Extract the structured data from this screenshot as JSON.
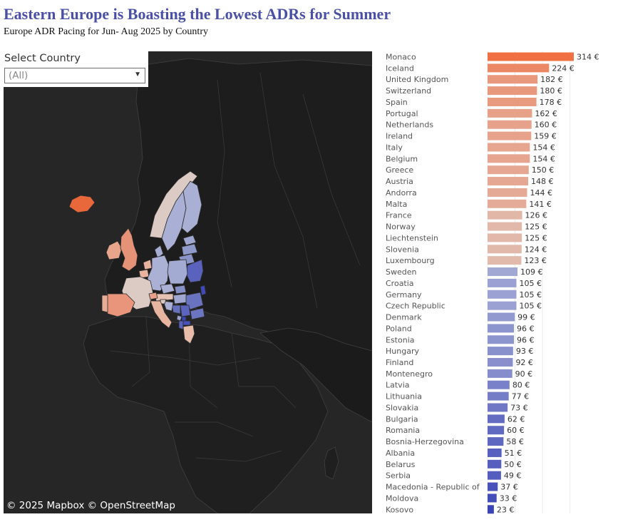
{
  "title": "Eastern Europe is Boasting the Lowest ADRs for Summer",
  "subtitle": "Europe ADR Pacing for Jun- Aug 2025 by Country",
  "filter": {
    "label": "Select Country",
    "value": "(All)",
    "caret_icon": "chevron-down-icon"
  },
  "map": {
    "attribution": "© 2025 Mapbox  © OpenStreetMap",
    "background_color": "#262626",
    "land_color": "#1c1c1c",
    "border_color": "#4a4a4a"
  },
  "colors": {
    "high": "#f07044",
    "mid_high": "#e8b8a4",
    "neutral": "#dccbc4",
    "mid_low": "#a9b0d4",
    "low": "#3d48b8"
  },
  "chart_data": {
    "type": "bar",
    "orientation": "horizontal",
    "value_prefix": "",
    "value_suffix": " €",
    "xlim": [
      0,
      330
    ],
    "color_midpoint": 116,
    "categories": [
      "Monaco",
      "Iceland",
      "United Kingdom",
      "Switzerland",
      "Spain",
      "Portugal",
      "Netherlands",
      "Ireland",
      "Italy",
      "Belgium",
      "Greece",
      "Austria",
      "Andorra",
      "Malta",
      "France",
      "Norway",
      "Liechtenstein",
      "Slovenia",
      "Luxembourg",
      "Sweden",
      "Croatia",
      "Germany",
      "Czech Republic",
      "Denmark",
      "Poland",
      "Estonia",
      "Hungary",
      "Finland",
      "Montenegro",
      "Latvia",
      "Lithuania",
      "Slovakia",
      "Bulgaria",
      "Romania",
      "Bosnia-Herzegovina",
      "Albania",
      "Belarus",
      "Serbia",
      "Macedonia - Republic of",
      "Moldova",
      "Kosovo"
    ],
    "values": [
      314,
      224,
      182,
      180,
      178,
      162,
      160,
      159,
      154,
      154,
      150,
      148,
      144,
      141,
      126,
      125,
      125,
      124,
      123,
      109,
      105,
      105,
      105,
      99,
      96,
      96,
      93,
      92,
      90,
      80,
      77,
      73,
      62,
      60,
      58,
      51,
      50,
      49,
      37,
      33,
      23
    ]
  }
}
